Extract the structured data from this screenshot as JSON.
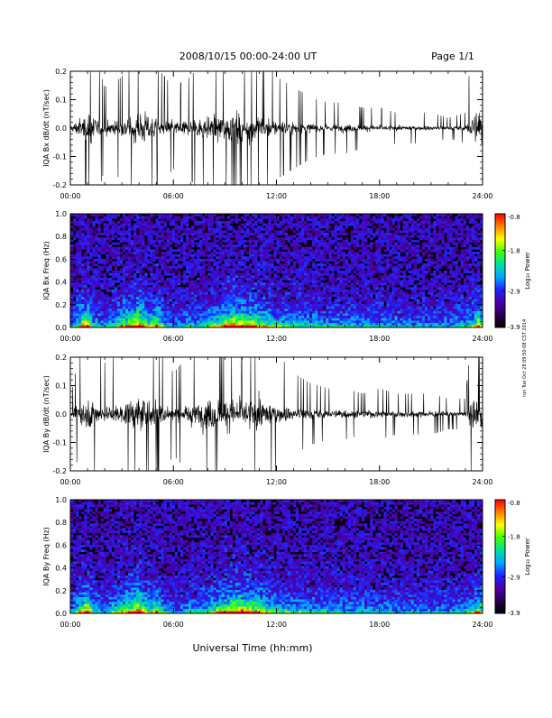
{
  "header": {
    "title": "2008/10/15  00:00-24:00 UT",
    "page": "Page 1/1"
  },
  "side_note": "run Tue Oct 28 09:50:08 CST 2014",
  "xlabel": "Universal Time (hh:mm)",
  "time_ticks": [
    "00:00",
    "06:00",
    "12:00",
    "18:00",
    "24:00"
  ],
  "colors": {
    "axis": "#000000",
    "trace": "#000000",
    "spectrogram_floor": "#0a0010",
    "colormap": [
      "#000000",
      "#2a0050",
      "#4c00a8",
      "#2222ff",
      "#00a8ff",
      "#00e0a0",
      "#40ff00",
      "#ffff00",
      "#ff8000",
      "#ff0000"
    ]
  },
  "chart_data": [
    {
      "type": "line",
      "ylabel": "IQA Bx dB/dt (nT/sec)",
      "xlim": [
        0,
        24
      ],
      "ylim": [
        -0.2,
        0.2
      ],
      "yticks": [
        "0.2",
        "0.1",
        "0.0",
        "-0.1",
        "-0.2"
      ],
      "envelope_hours": [
        0,
        1,
        2,
        3,
        3.8,
        4.4,
        5,
        6,
        7,
        8,
        9,
        10,
        11,
        12,
        13,
        14,
        15,
        16,
        17,
        18,
        19,
        20,
        21,
        22,
        23,
        23.5,
        24
      ],
      "envelope_amplitude": [
        0.04,
        0.2,
        0.08,
        0.1,
        0.2,
        0.2,
        0.12,
        0.08,
        0.1,
        0.15,
        0.2,
        0.2,
        0.15,
        0.1,
        0.08,
        0.06,
        0.05,
        0.05,
        0.04,
        0.04,
        0.03,
        0.03,
        0.03,
        0.02,
        0.03,
        0.2,
        0.2
      ]
    },
    {
      "type": "heatmap",
      "ylabel": "IQA Bx Freq (Hz)",
      "xlim": [
        0,
        24
      ],
      "ylim": [
        0,
        1.0
      ],
      "yticks": [
        "1.0",
        "0.8",
        "0.6",
        "0.4",
        "0.2",
        "0.0"
      ],
      "colorbar": {
        "label": "Log₁₀ Power",
        "ticks": [
          "-0.8",
          "-1.8",
          "-2.9",
          "-3.9"
        ],
        "range": [
          -3.9,
          -0.8
        ]
      }
    },
    {
      "type": "line",
      "ylabel": "IQA By dB/dt (nT/sec)",
      "xlim": [
        0,
        24
      ],
      "ylim": [
        -0.2,
        0.2
      ],
      "yticks": [
        "0.2",
        "0.1",
        "0.0",
        "-0.1",
        "-0.2"
      ],
      "envelope_hours": [
        0,
        1,
        2,
        3,
        3.8,
        4.4,
        5,
        6,
        7,
        8,
        9,
        10,
        11,
        12,
        13,
        14,
        15,
        16,
        17,
        18,
        19,
        20,
        21,
        22,
        23,
        23.5,
        24
      ],
      "envelope_amplitude": [
        0.03,
        0.2,
        0.1,
        0.12,
        0.2,
        0.2,
        0.15,
        0.08,
        0.12,
        0.2,
        0.2,
        0.2,
        0.2,
        0.12,
        0.08,
        0.06,
        0.05,
        0.05,
        0.04,
        0.05,
        0.04,
        0.04,
        0.04,
        0.03,
        0.03,
        0.2,
        0.2
      ]
    },
    {
      "type": "heatmap",
      "ylabel": "IQA By Freq (Hz)",
      "xlim": [
        0,
        24
      ],
      "ylim": [
        0,
        1.0
      ],
      "yticks": [
        "1.0",
        "0.8",
        "0.6",
        "0.4",
        "0.2",
        "0.0"
      ],
      "colorbar": {
        "label": "Log₁₀ Power",
        "ticks": [
          "-0.8",
          "-1.8",
          "-2.9",
          "-3.9"
        ],
        "range": [
          -3.9,
          -0.8
        ]
      }
    }
  ]
}
